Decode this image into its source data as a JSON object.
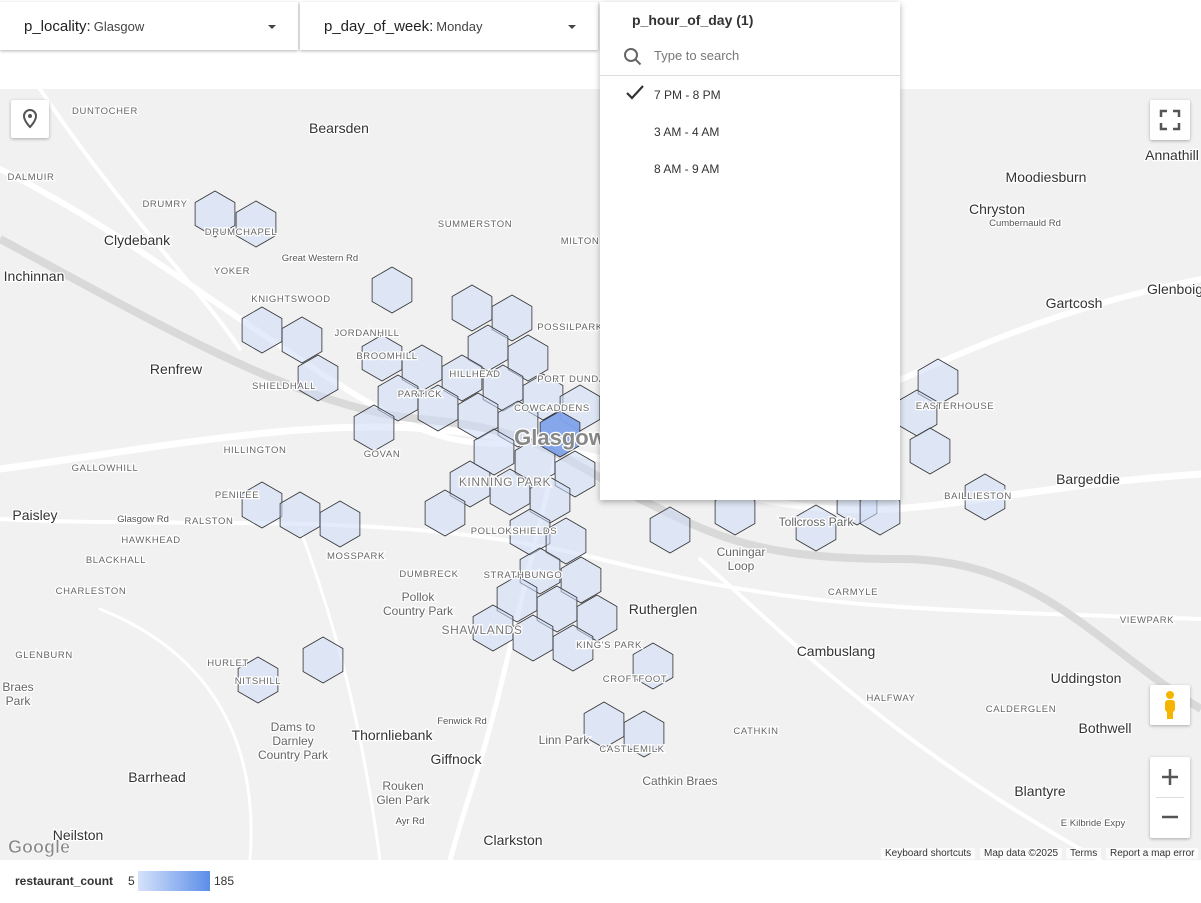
{
  "filters": [
    {
      "label": "p_locality:",
      "value": "Glasgow"
    },
    {
      "label": "p_day_of_week:",
      "value": "Monday"
    }
  ],
  "dropdown": {
    "title": "p_hour_of_day (1)",
    "search_placeholder": "Type to search",
    "options": [
      {
        "label": "7 PM - 8 PM",
        "selected": true
      },
      {
        "label": "3 AM - 4 AM",
        "selected": false
      },
      {
        "label": "8 AM - 9 AM",
        "selected": false
      }
    ]
  },
  "map": {
    "labels": [
      "Bearsden",
      "Clydebank",
      "Inchinnan",
      "Renfrew",
      "Paisley",
      "Moodiesburn",
      "Chryston",
      "Gartcosh",
      "Bargeddie",
      "Rutherglen",
      "Cambuslang",
      "Uddingston",
      "Bothwell",
      "Blantyre",
      "Thornliebank",
      "Giffnock",
      "Barrhead",
      "Neilston",
      "Clarkston",
      "Annathill",
      "Glenboig",
      "Glasgow",
      "Pollok",
      "Country Park",
      "Tollcross Park",
      "Cuningar",
      "Loop",
      "Linn Park",
      "Cathkin Braes",
      "Rouken",
      "Glen Park",
      "Dams to",
      "Darnley",
      "Country Park",
      "Braes",
      "Park",
      "DUNTOCHER",
      "DALMUIR",
      "DRUMRY",
      "DRUMCHAPEL",
      "YOKER",
      "KNIGHTSWOOD",
      "SUMMERSTON",
      "MILTON",
      "JORDANHILL",
      "BROOMHILL",
      "POSSILPARK",
      "HILLHEAD",
      "SHIELDHALL",
      "PARTICK",
      "PORT DUNDAS",
      "COWCADDENS",
      "HILLINGTON",
      "GOVAN",
      "GALLOWHILL",
      "KINNING PARK",
      "PENILEE",
      "RALSTON",
      "HAWKHEAD",
      "POLLOKSHIELDS",
      "MOSSPARK",
      "BLACKHALL",
      "DUMBRECK",
      "STRATHBUNGO",
      "CHARLESTON",
      "SHAWLANDS",
      "KING'S PARK",
      "GLENBURN",
      "CARMYLE",
      "VIEWPARK",
      "HURLET",
      "CROFTFOOT",
      "NITSHILL",
      "HALFWAY",
      "CALDERGLEN",
      "CATHKIN",
      "CASTLEMILK",
      "EASTERHOUSE",
      "BAILLIESTON",
      "Glasgow Rd",
      "Great Western Rd",
      "Cumbernauld Rd",
      "Fenwick Rd",
      "Ayr Rd",
      "E Kilbride Expy"
    ],
    "logo": "Google",
    "attribution": [
      "Keyboard shortcuts",
      "Map data ©2025",
      "Terms",
      "Report a map error"
    ]
  },
  "legend": {
    "title": "restaurant_count",
    "min": "5",
    "max": "185"
  }
}
